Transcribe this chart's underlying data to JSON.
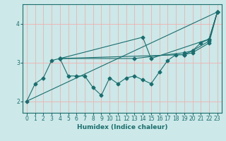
{
  "xlabel": "Humidex (Indice chaleur)",
  "xlim": [
    -0.5,
    23.5
  ],
  "ylim": [
    1.7,
    4.5
  ],
  "yticks": [
    2,
    3,
    4
  ],
  "bg_color": "#cce8e8",
  "grid_color": "#f0b0b0",
  "line_color": "#1a6e6e",
  "line1": {
    "x": [
      0,
      23
    ],
    "y": [
      2.0,
      4.3
    ]
  },
  "line2": {
    "x": [
      4,
      14,
      15,
      22,
      23
    ],
    "y": [
      3.1,
      3.65,
      3.1,
      3.6,
      4.3
    ]
  },
  "line3": {
    "x": [
      4,
      13,
      19,
      20,
      22,
      23
    ],
    "y": [
      3.1,
      3.1,
      3.25,
      3.3,
      3.55,
      4.3
    ]
  },
  "line4": {
    "x": [
      4,
      19,
      20,
      22,
      23
    ],
    "y": [
      3.1,
      3.2,
      3.25,
      3.5,
      4.3
    ]
  },
  "line5": {
    "x": [
      0,
      1,
      2,
      3,
      4,
      5,
      6,
      7,
      8,
      9,
      10,
      11,
      12,
      13,
      14,
      15,
      16,
      17,
      18,
      19,
      20,
      21,
      22,
      23
    ],
    "y": [
      2.0,
      2.45,
      2.6,
      3.05,
      3.1,
      2.65,
      2.65,
      2.65,
      2.35,
      2.15,
      2.6,
      2.45,
      2.6,
      2.65,
      2.55,
      2.45,
      2.75,
      3.05,
      3.2,
      3.2,
      3.3,
      3.5,
      3.6,
      4.3
    ]
  }
}
